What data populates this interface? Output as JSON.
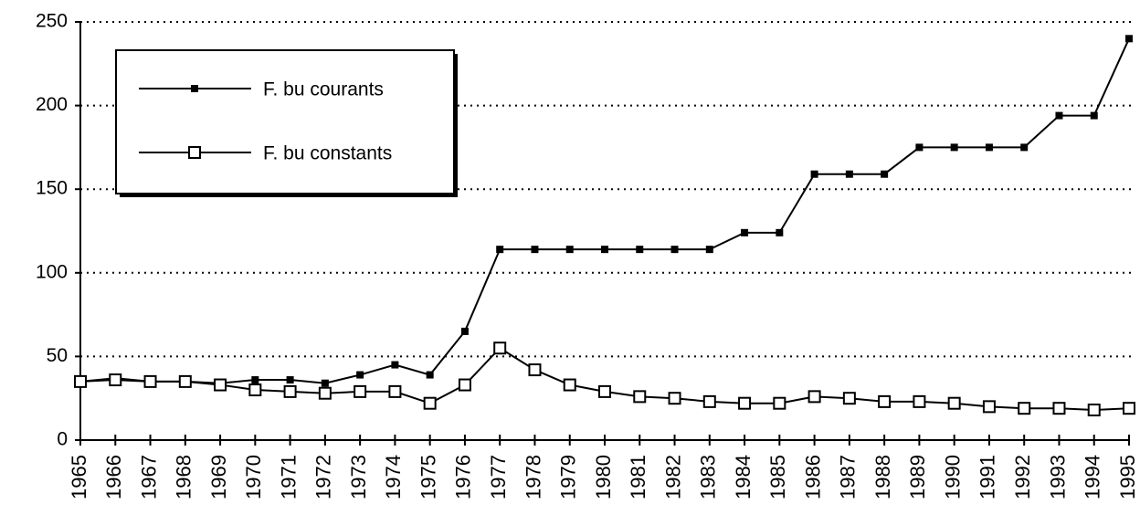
{
  "chart_data": {
    "type": "line",
    "categories": [
      "1965",
      "1966",
      "1967",
      "1968",
      "1969",
      "1970",
      "1971",
      "1972",
      "1973",
      "1974",
      "1975",
      "1976",
      "1977",
      "1978",
      "1979",
      "1980",
      "1981",
      "1982",
      "1983",
      "1984",
      "1985",
      "1986",
      "1987",
      "1988",
      "1989",
      "1990",
      "1991",
      "1992",
      "1993",
      "1994",
      "1995"
    ],
    "series": [
      {
        "name": "F. bu courants",
        "color": "#000000",
        "marker": "filled-square",
        "values": [
          35,
          37,
          35,
          35,
          34,
          36,
          36,
          34,
          39,
          45,
          39,
          65,
          114,
          114,
          114,
          114,
          114,
          114,
          114,
          124,
          124,
          159,
          159,
          159,
          175,
          175,
          175,
          175,
          194,
          194,
          240
        ]
      },
      {
        "name": "F. bu constants",
        "color": "#000000",
        "marker": "open-square",
        "values": [
          35,
          36,
          35,
          35,
          33,
          30,
          29,
          28,
          29,
          29,
          22,
          33,
          55,
          42,
          33,
          29,
          26,
          25,
          23,
          22,
          22,
          26,
          25,
          23,
          23,
          22,
          20,
          19,
          19,
          18,
          19
        ]
      }
    ],
    "ylim": [
      0,
      250
    ],
    "yticks": [
      0,
      50,
      100,
      150,
      200,
      250
    ],
    "grid": true
  }
}
